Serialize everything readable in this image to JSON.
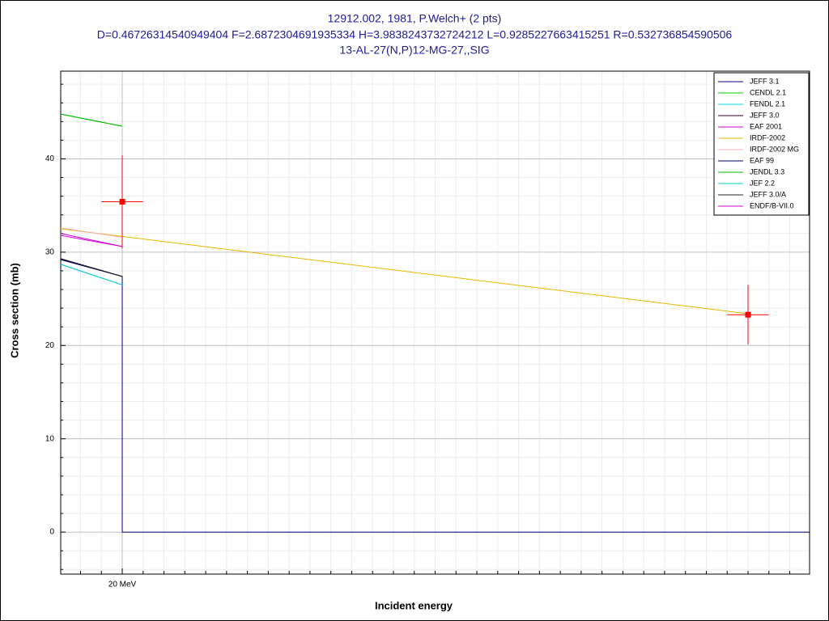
{
  "chart_data": {
    "type": "line",
    "title": "12912.002, 1981, P.Welch+ (2 pts)",
    "subtitle": "D=0.46726314540949404 F=2.6872304691935334 H=3.9838243732724212 L=0.9285227663415251 R=0.532736854590506",
    "reaction": "13-AL-27(N,P)12-MG-27,,SIG",
    "x_label": "Incident energy",
    "y_label": "Cross section (mb)",
    "xlim": [
      17.05,
      52.95
    ],
    "ylim": [
      -4.5,
      49.4
    ],
    "xticks": [
      {
        "value": 20,
        "label": "20 MeV"
      }
    ],
    "yticks": [
      0,
      10,
      20,
      30,
      40
    ],
    "x_minor_ticks": [
      18,
      19,
      21,
      22,
      23,
      24,
      25,
      26,
      27,
      28,
      29,
      30,
      31,
      32,
      33,
      34,
      35,
      36,
      37,
      38,
      39,
      40,
      41,
      42,
      43,
      44,
      45,
      46,
      47,
      48,
      49,
      50,
      51,
      52
    ],
    "y_minor_ticks": [
      -4,
      -2,
      2,
      4,
      6,
      8,
      12,
      14,
      16,
      18,
      22,
      24,
      26,
      28,
      32,
      34,
      36,
      38,
      42,
      44,
      46,
      48
    ],
    "grid": true,
    "legend": "top-right",
    "series": [
      {
        "name": "JEFF 3.1",
        "color": "#000080",
        "x": [
          17.05,
          20,
          20,
          52.95
        ],
        "values": [
          29.3,
          27.4,
          0,
          0
        ]
      },
      {
        "name": "CENDL 2.1",
        "color": "#00cc00",
        "x": [
          17.05,
          20
        ],
        "values": [
          44.8,
          43.5
        ]
      },
      {
        "name": "FENDL 2.1",
        "color": "#00dddd",
        "x": [
          17.05,
          20
        ],
        "values": [
          28.7,
          26.5
        ]
      },
      {
        "name": "JEFF 3.0",
        "color": "#300030",
        "x": [
          17.05,
          20
        ],
        "values": [
          29.3,
          27.4
        ]
      },
      {
        "name": "EAF 2001",
        "color": "#cc00cc",
        "x": [
          17.05,
          20
        ],
        "values": [
          32.0,
          30.6
        ]
      },
      {
        "name": "IRDF-2002",
        "color": "#e8b800",
        "x": [
          17.05,
          50
        ],
        "values": [
          32.5,
          23.4
        ]
      },
      {
        "name": "IRDF-2002 MG",
        "color": "#f0b0b0",
        "x": [
          17.05,
          20
        ],
        "values": [
          32.6,
          31.6
        ]
      },
      {
        "name": "EAF 99",
        "color": "#000060",
        "x": [
          17.05,
          20
        ],
        "values": [
          29.2,
          27.4
        ]
      },
      {
        "name": "JENDL 3.3",
        "color": "#00bb00",
        "x": [
          17.05,
          20
        ],
        "values": [
          44.8,
          43.5
        ]
      },
      {
        "name": "JEF 2.2",
        "color": "#00cccc",
        "x": [
          17.05,
          20
        ],
        "values": [
          28.7,
          26.5
        ]
      },
      {
        "name": "JEFF 3.0/A",
        "color": "#202020",
        "x": [
          17.05,
          20
        ],
        "values": [
          29.3,
          27.4
        ]
      },
      {
        "name": "ENDF/B-VII.0",
        "color": "#dd00dd",
        "x": [
          17.05,
          20
        ],
        "values": [
          31.8,
          30.6
        ]
      }
    ],
    "points": {
      "color": "#ff0000",
      "x": [
        20,
        50
      ],
      "values": [
        35.4,
        23.3
      ],
      "y_errors": [
        5.0,
        3.2
      ],
      "x_errors": [
        1,
        1
      ]
    }
  }
}
